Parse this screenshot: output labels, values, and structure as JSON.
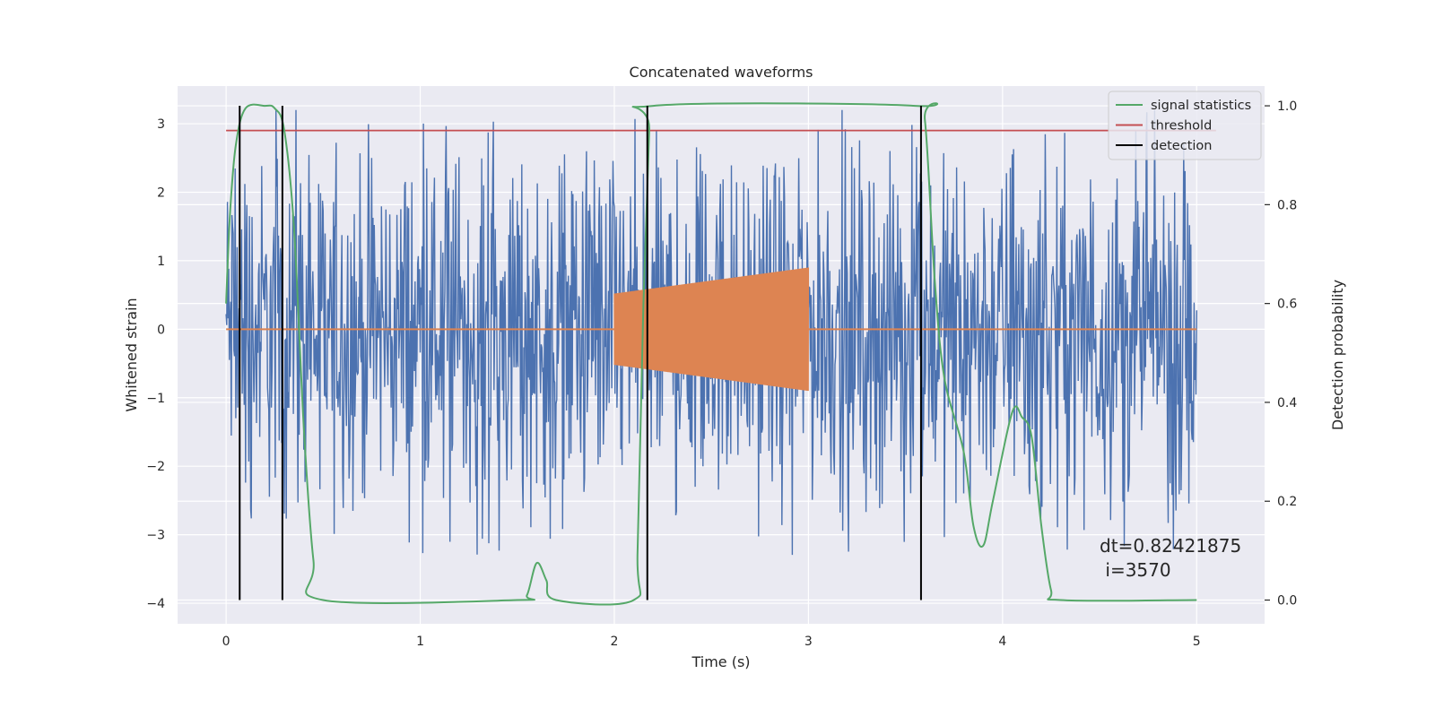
{
  "chart_data": {
    "type": "line",
    "title": "Concatenated waveforms",
    "xlabel": "Time (s)",
    "ylabel": "Whitened strain",
    "y2label": "Detection probability",
    "xlim": [
      -0.25,
      5.35
    ],
    "ylim": [
      -4.3,
      3.55
    ],
    "y2lim": [
      -0.048,
      1.04
    ],
    "x_ticks": [
      0,
      1,
      2,
      3,
      4,
      5
    ],
    "y_ticks": [
      -4,
      -3,
      -2,
      -1,
      0,
      1,
      2,
      3
    ],
    "y2_ticks": [
      0.0,
      0.2,
      0.4,
      0.6,
      0.8,
      1.0
    ],
    "y2_tick_labels": [
      "0.0",
      "0.2",
      "0.4",
      "0.6",
      "0.8",
      "1.0"
    ],
    "grid": true,
    "legend_position": "top-right",
    "legend": [
      {
        "name": "signal statistics",
        "color": "#55a868"
      },
      {
        "name": "threshold",
        "color": "#c44e52"
      },
      {
        "name": "detection",
        "color": "#000000"
      }
    ],
    "strain_noise": {
      "color": "#4c72b0",
      "x_range": [
        0,
        5
      ],
      "typical_amplitude": 1.2,
      "max": 3.2,
      "min": -3.6
    },
    "injected_signal": {
      "color": "#dd8452",
      "x_range": [
        2,
        3
      ],
      "amplitude_start": 0.52,
      "amplitude_end": 0.9,
      "baseline": 0
    },
    "signal_statistics": {
      "color": "#55a868",
      "points": [
        [
          0,
          0.6
        ],
        [
          0.02,
          0.78
        ],
        [
          0.05,
          0.92
        ],
        [
          0.1,
          0.995
        ],
        [
          0.2,
          1.0
        ],
        [
          0.25,
          0.995
        ],
        [
          0.3,
          0.95
        ],
        [
          0.35,
          0.75
        ],
        [
          0.4,
          0.35
        ],
        [
          0.45,
          0.08
        ],
        [
          0.5,
          0.0
        ],
        [
          1.5,
          0.0
        ],
        [
          1.55,
          0.01
        ],
        [
          1.6,
          0.075
        ],
        [
          1.65,
          0.04
        ],
        [
          1.7,
          0.0
        ],
        [
          2.1,
          0.0
        ],
        [
          2.12,
          0.1
        ],
        [
          2.15,
          0.6
        ],
        [
          2.18,
          0.95
        ],
        [
          2.2,
          1.0
        ],
        [
          3.55,
          1.0
        ],
        [
          3.6,
          0.97
        ],
        [
          3.65,
          0.65
        ],
        [
          3.7,
          0.45
        ],
        [
          3.8,
          0.3
        ],
        [
          3.85,
          0.15
        ],
        [
          3.9,
          0.11
        ],
        [
          3.95,
          0.2
        ],
        [
          4.05,
          0.38
        ],
        [
          4.1,
          0.37
        ],
        [
          4.15,
          0.33
        ],
        [
          4.2,
          0.15
        ],
        [
          4.25,
          0.02
        ],
        [
          4.3,
          0.0
        ],
        [
          5.0,
          0.0
        ]
      ]
    },
    "threshold": {
      "color": "#c44e52",
      "value": 0.95,
      "x_range": [
        0,
        5.1
      ]
    },
    "detections": {
      "color": "#000000",
      "x": [
        0.07,
        0.29,
        2.17,
        3.58
      ],
      "y_range": [
        0.0,
        1.0
      ]
    },
    "annotation": {
      "lines": [
        "dt=0.82421875",
        " i=3570"
      ],
      "x": 4.5,
      "y": 0.12
    }
  }
}
